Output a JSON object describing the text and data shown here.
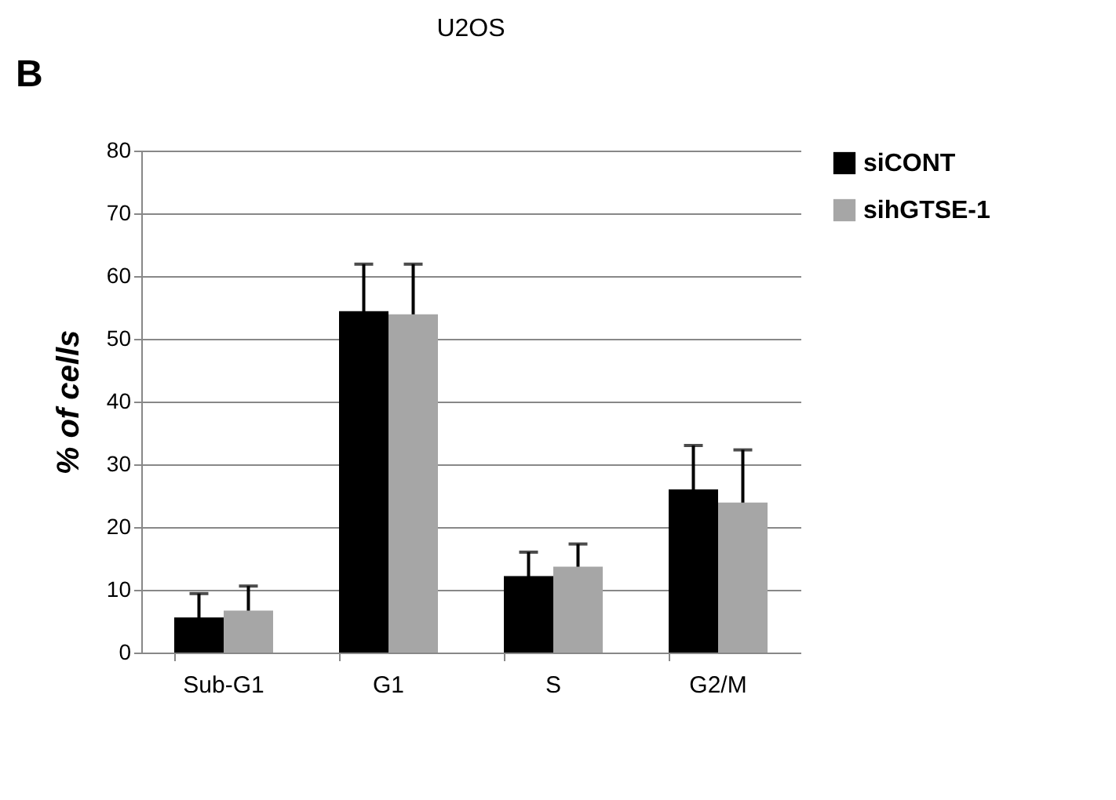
{
  "chart_data": {
    "type": "bar",
    "title": "U2OS",
    "ylabel": "% of cells",
    "annotations": [
      "B"
    ],
    "categories": [
      "Sub-G1",
      "G1",
      "S",
      "G2/M"
    ],
    "series": [
      {
        "name": "siCONT",
        "color": "#000000",
        "values": [
          5.6,
          54.4,
          12.2,
          26.0
        ],
        "errors": [
          3.8,
          7.5,
          3.8,
          7.0
        ]
      },
      {
        "name": "sihGTSE-1",
        "color": "#a6a6a6",
        "values": [
          6.7,
          53.9,
          13.7,
          23.9
        ],
        "errors": [
          3.9,
          8.0,
          3.6,
          8.4
        ]
      }
    ],
    "ylim": [
      0,
      80
    ],
    "yticks": [
      0,
      10,
      20,
      30,
      40,
      50,
      60,
      70,
      80
    ],
    "grid": "y",
    "legend": "top right"
  }
}
